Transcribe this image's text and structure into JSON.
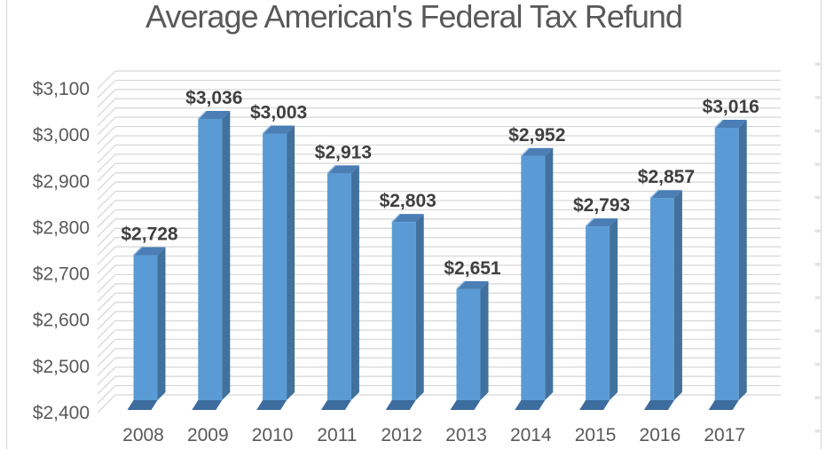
{
  "frame": {
    "background": "#ffffff",
    "border_color": "#d9d9d9",
    "row_tick_color": "#e4e4e4"
  },
  "chart_data": {
    "type": "bar",
    "variant": "3d-clustered-column",
    "title": "Average American's Federal Tax Refund",
    "categories": [
      "2008",
      "2009",
      "2010",
      "2011",
      "2012",
      "2013",
      "2014",
      "2015",
      "2016",
      "2017"
    ],
    "values": [
      2728,
      3036,
      3003,
      2913,
      2803,
      2651,
      2952,
      2793,
      2857,
      3016
    ],
    "data_labels": [
      "$2,728",
      "$3,036",
      "$3,003",
      "$2,913",
      "$2,803",
      "$2,651",
      "$2,952",
      "$2,793",
      "$2,857",
      "$3,016"
    ],
    "xlabel": "",
    "ylabel": "",
    "ylim": [
      2400,
      3100
    ],
    "ytick_step": 100,
    "ytick_labels": [
      "$2,400",
      "$2,500",
      "$2,600",
      "$2,700",
      "$2,800",
      "$2,900",
      "$3,000",
      "$3,100"
    ],
    "minor_gridline_step": 20,
    "grid": true,
    "legend": "none",
    "colors": {
      "bar_front": "#5b9bd5",
      "bar_side": "#41719c",
      "bar_top": "#4a7eb5",
      "bar_base": "#3d6c9e",
      "bar_top_highlight": "#9dc3e6",
      "gridline": "#d6d6d6",
      "axis_text": "#595959",
      "data_label_text": "#3f3f3f",
      "title_text": "#595959"
    }
  }
}
